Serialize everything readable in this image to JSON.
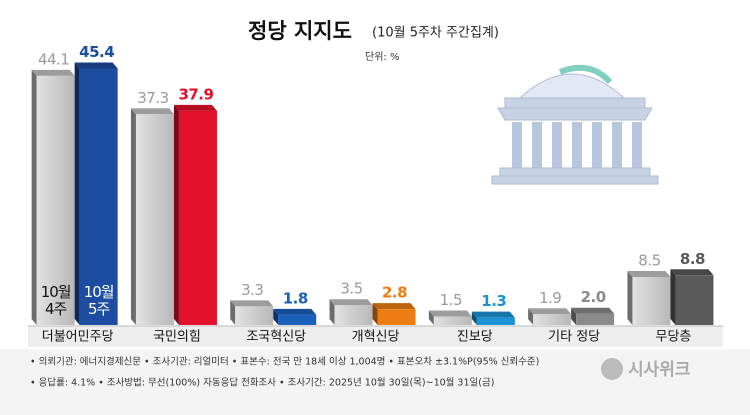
{
  "chart_data": {
    "type": "bar",
    "title": "정당 지지도",
    "subtitle": "(10월 5주차 주간집계)",
    "unit": "단위: %",
    "categories": [
      "더불어민주당",
      "국민의힘",
      "조국혁신당",
      "개혁신당",
      "진보당",
      "기타 정당",
      "무당층"
    ],
    "series": [
      {
        "name": "10월 4주",
        "color": "#c4c4c4",
        "label_color": "#9a9a9a",
        "values": [
          44.1,
          37.3,
          3.3,
          3.5,
          1.5,
          1.9,
          8.5
        ],
        "value_labels": [
          "44.1",
          "37.3",
          "3.3",
          "3.5",
          "1.5",
          "1.9",
          "8.5"
        ]
      },
      {
        "name": "10월 5주",
        "colors": [
          "#1c4da0",
          "#e3112c",
          "#1a5fb8",
          "#ec7d12",
          "#1b92d6",
          "#8a8a8a",
          "#5a5a5a"
        ],
        "values": [
          45.4,
          37.9,
          1.8,
          2.8,
          1.3,
          2.0,
          8.8
        ],
        "value_labels": [
          "45.4",
          "37.9",
          "1.8",
          "2.8",
          "1.3",
          "2.0",
          "8.8"
        ]
      }
    ],
    "notes": [
      "• 의뢰기관: 에너지경제신문 • 조사기관: 리얼미터 • 표본수: 전국 만 18세 이상 1,004명 • 표본오차 ±3.1%P(95% 신뢰수준)",
      "• 응답률: 4.1% • 조사방법: 무선(100%) 자동응답 전화조사 • 조사기간: 2025년 10월 30일(목)~10월 31일(금)"
    ],
    "source": "시사위크"
  }
}
